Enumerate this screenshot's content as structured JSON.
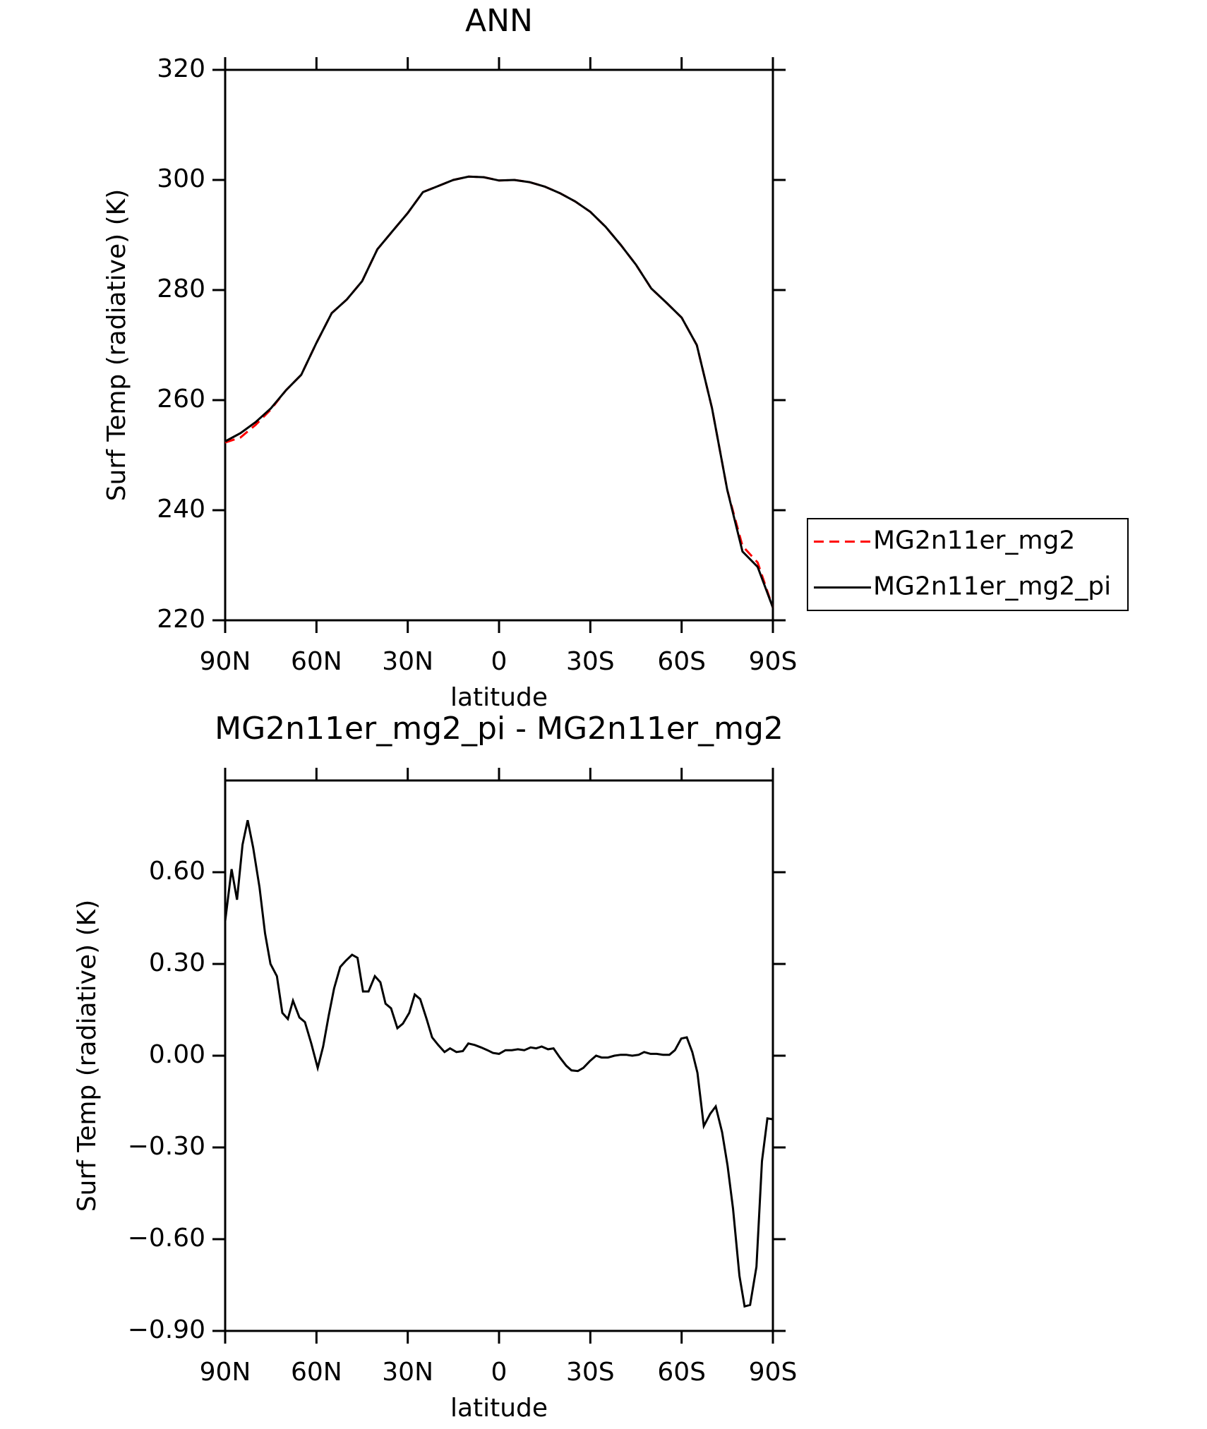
{
  "chart_data": [
    {
      "type": "line",
      "title": "ANN",
      "x_label": "latitude",
      "y_label": "Surf Temp (radiative) (K)",
      "x": [
        90,
        85,
        80,
        75,
        70,
        65,
        60,
        55,
        50,
        45,
        40,
        35,
        30,
        25,
        20,
        15,
        10,
        5,
        0,
        -5,
        -10,
        -15,
        -20,
        -25,
        -30,
        -35,
        -40,
        -45,
        -50,
        -55,
        -60,
        -65,
        -70,
        -75,
        -80,
        -85,
        -90
      ],
      "series": [
        {
          "name": "MG2n11er_mg2",
          "color": "#ff0000",
          "line_style": "dashed",
          "values": [
            252.3,
            253.2,
            255.5,
            258.3,
            261.8,
            264.6,
            270.4,
            275.8,
            278.3,
            281.6,
            287.4,
            290.7,
            294,
            297.8,
            298.9,
            300,
            300.6,
            300.5,
            299.9,
            300,
            299.6,
            298.8,
            297.6,
            296.1,
            294.2,
            291.5,
            288.2,
            284.6,
            280.3,
            277.7,
            275,
            270,
            258.5,
            243.7,
            233.5,
            230.5,
            222.3
          ]
        },
        {
          "name": "MG2n11er_mg2_pi",
          "color": "#000000",
          "line_style": "solid",
          "values": [
            252.5,
            254,
            256,
            258.5,
            261.8,
            264.6,
            270.4,
            275.8,
            278.3,
            281.6,
            287.4,
            290.7,
            294,
            297.8,
            298.9,
            300,
            300.6,
            300.5,
            299.9,
            300,
            299.6,
            298.8,
            297.6,
            296.1,
            294.2,
            291.5,
            288.2,
            284.6,
            280.3,
            277.7,
            275,
            270,
            258.5,
            243.7,
            232.5,
            229.7,
            222.3
          ]
        }
      ],
      "xlim": [
        90,
        -90
      ],
      "xticks": [
        {
          "value": 90,
          "label": "90N"
        },
        {
          "value": 60,
          "label": "60N"
        },
        {
          "value": 30,
          "label": "30N"
        },
        0,
        {
          "value": -30,
          "label": "30S"
        },
        {
          "value": -60,
          "label": "60S"
        },
        {
          "value": -90,
          "label": "90S"
        }
      ],
      "ylim": [
        220,
        320
      ],
      "yticks": [
        220,
        240,
        260,
        280,
        300,
        320
      ],
      "legend": "right"
    },
    {
      "type": "line",
      "title": "MG2n11er_mg2_pi - MG2n11er_mg2",
      "x_label": "latitude",
      "y_label": "Surf Temp (radiative) (K)",
      "x": [
        90,
        87.9,
        86.1,
        84.3,
        82.6,
        80.8,
        78.7,
        76.9,
        75.1,
        73.0,
        71.2,
        69.4,
        67.7,
        65.6,
        63.8,
        61.7,
        59.6,
        57.8,
        56.0,
        54.2,
        52.2,
        50.4,
        48.3,
        46.5,
        44.7,
        42.9,
        40.8,
        39.0,
        37.3,
        35.5,
        33.4,
        31.6,
        29.5,
        27.7,
        25.9,
        23.8,
        22.0,
        20.0,
        17.9,
        16.1,
        14.0,
        11.9,
        10.1,
        8.0,
        5.9,
        3.8,
        2.0,
        0,
        -2.1,
        -4.2,
        -6.2,
        -8.3,
        -10.4,
        -12.2,
        -14.0,
        -16.1,
        -17.9,
        -20.0,
        -22.1,
        -23.8,
        -25.9,
        -27.7,
        -29.8,
        -31.9,
        -33.7,
        -35.8,
        -37.9,
        -40.0,
        -41.8,
        -43.8,
        -45.9,
        -47.7,
        -49.8,
        -51.8,
        -53.9,
        -56.0,
        -57.8,
        -59.9,
        -61.7,
        -63.5,
        -65.2,
        -67.3,
        -69.4,
        -71.2,
        -73.3,
        -75.1,
        -76.9,
        -79.0,
        -80.7,
        -82.5,
        -84.6,
        -86.4,
        -88.2,
        -90
      ],
      "series": [
        {
          "color": "#000000",
          "line_style": "solid",
          "values": [
            0.44,
            0.61,
            0.51,
            0.69,
            0.77,
            0.68,
            0.55,
            0.4,
            0.3,
            0.26,
            0.14,
            0.12,
            0.18,
            0.125,
            0.11,
            0.04,
            -0.04,
            0.03,
            0.13,
            0.22,
            0.29,
            0.31,
            0.33,
            0.32,
            0.21,
            0.21,
            0.26,
            0.24,
            0.17,
            0.155,
            0.09,
            0.105,
            0.14,
            0.2,
            0.185,
            0.12,
            0.06,
            0.035,
            0.012,
            0.024,
            0.012,
            0.015,
            0.04,
            0.035,
            0.027,
            0.018,
            0.009,
            0.006,
            0.018,
            0.018,
            0.021,
            0.018,
            0.027,
            0.024,
            0.03,
            0.021,
            0.024,
            -0.006,
            -0.033,
            -0.048,
            -0.05,
            -0.04,
            -0.018,
            0,
            -0.006,
            -0.006,
            0,
            0.003,
            0.003,
            0,
            0.003,
            0.012,
            0.006,
            0.006,
            0.003,
            0.003,
            0.018,
            0.056,
            0.06,
            0.012,
            -0.056,
            -0.23,
            -0.19,
            -0.166,
            -0.25,
            -0.36,
            -0.5,
            -0.72,
            -0.82,
            -0.815,
            -0.69,
            -0.345,
            -0.205,
            -0.208
          ]
        }
      ],
      "xlim": [
        90,
        -90
      ],
      "xticks": [
        {
          "value": 90,
          "label": "90N"
        },
        {
          "value": 60,
          "label": "60N"
        },
        {
          "value": 30,
          "label": "30N"
        },
        0,
        {
          "value": -30,
          "label": "30S"
        },
        {
          "value": -60,
          "label": "60S"
        },
        {
          "value": -90,
          "label": "90S"
        }
      ],
      "ylim": [
        -0.9,
        0.9
      ],
      "yticks": [
        {
          "value": -0.9,
          "label": "−0.90"
        },
        {
          "value": -0.6,
          "label": "−0.60"
        },
        {
          "value": -0.3,
          "label": "−0.30"
        },
        {
          "value": 0,
          "label": "0.00"
        },
        {
          "value": 0.3,
          "label": "0.30"
        },
        {
          "value": 0.6,
          "label": "0.60"
        }
      ]
    }
  ]
}
